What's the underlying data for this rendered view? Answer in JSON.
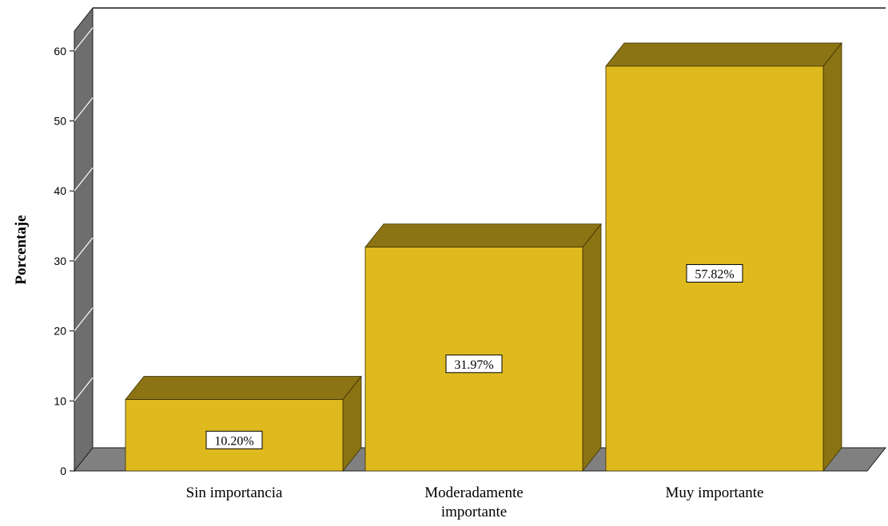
{
  "chart_data": {
    "type": "bar",
    "title": "",
    "xlabel": "",
    "ylabel": "Porcentaje",
    "categories": [
      "Sin importancia",
      "Moderadamente importante",
      "Muy importante"
    ],
    "category_lines": [
      [
        "Sin importancia"
      ],
      [
        "Moderadamente",
        "importante"
      ],
      [
        "Muy importante"
      ]
    ],
    "values": [
      10.2,
      31.97,
      57.82
    ],
    "data_labels": [
      "10.20%",
      "31.97%",
      "57.82%"
    ],
    "ylim": [
      0,
      60
    ],
    "yticks": [
      "0",
      "10",
      "20",
      "30",
      "40",
      "50",
      "60"
    ],
    "grid": false,
    "legend": "none",
    "style": "3d-bar",
    "colors": {
      "bar_front": "#dfba1f",
      "bar_side": "#8a7313",
      "bar_top": "#8c7414",
      "wall": "#6e6e6e",
      "floor": "#808080"
    }
  }
}
